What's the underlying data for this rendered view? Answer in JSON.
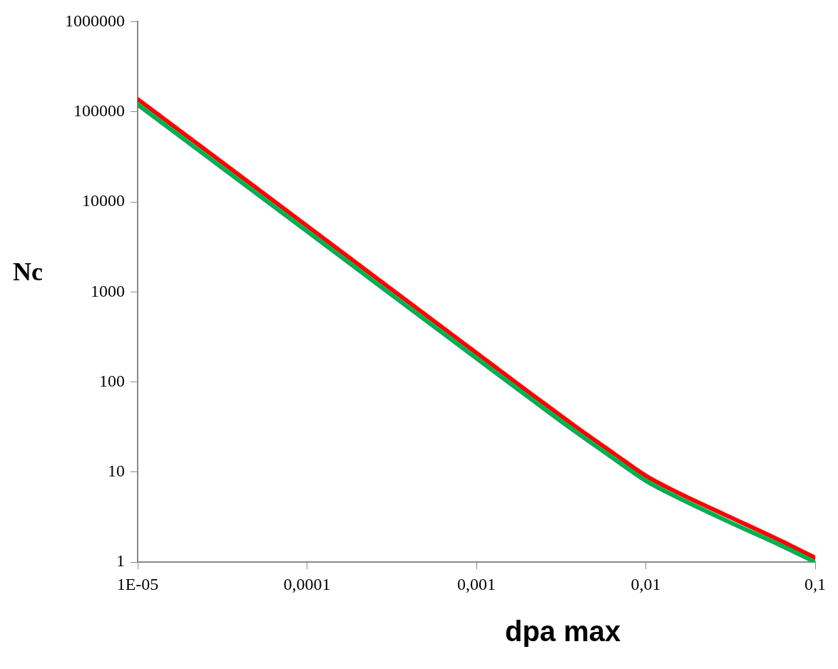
{
  "chart_data": {
    "type": "line",
    "xlabel": "dpa max",
    "ylabel": "Nc",
    "log": "xy",
    "grid": false,
    "legend": false,
    "marker": "none",
    "line_style": "solid",
    "xlim": [
      1e-05,
      0.1
    ],
    "ylim": [
      1,
      1000000
    ],
    "xticks": [
      {
        "value": 1e-05,
        "label": "1E-05"
      },
      {
        "value": 0.0001,
        "label": "0,0001"
      },
      {
        "value": 0.001,
        "label": "0,001"
      },
      {
        "value": 0.01,
        "label": "0,01"
      },
      {
        "value": 0.1,
        "label": "0,1"
      }
    ],
    "yticks": [
      1,
      10,
      100,
      1000,
      10000,
      100000,
      1000000
    ],
    "x": [
      1e-05,
      0.0001,
      0.001,
      0.00385,
      0.0065,
      0.01,
      0.0155,
      0.031,
      0.062,
      0.1
    ],
    "series": [
      {
        "color": "#ff0000",
        "values": [
          138000,
          5400,
          210,
          32,
          16,
          9.1,
          5.9,
          3.2,
          1.74,
          1.12
        ]
      },
      {
        "color": "#00b050",
        "values": [
          120000,
          4700,
          183,
          28,
          14,
          8,
          5.2,
          2.8,
          1.55,
          1.0
        ]
      }
    ]
  }
}
